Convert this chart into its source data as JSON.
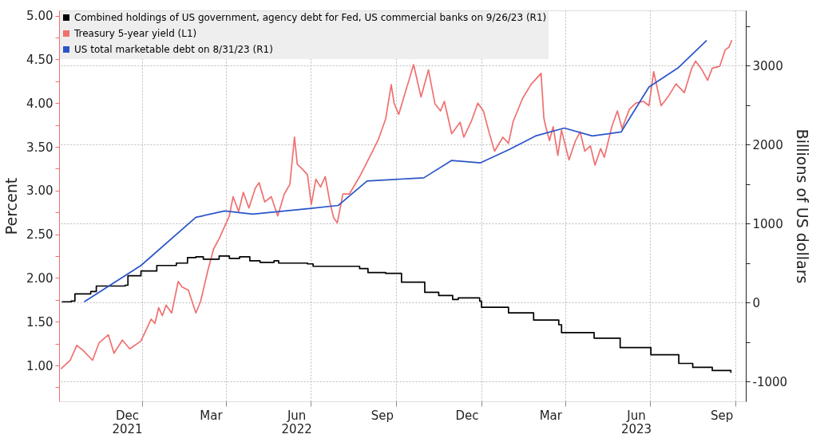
{
  "chart_data": {
    "type": "line",
    "xlabel": null,
    "ylabel": "Percent",
    "y2label": "Billions of US dollars",
    "xlim": [
      "2021-10-04",
      "2023-10-12"
    ],
    "xticks": [
      {
        "value": "2021-12-16",
        "label": "Dec\n2021"
      },
      {
        "value": "2022-01-01",
        "label": null
      },
      {
        "value": "2022-03-16",
        "label": "Mar"
      },
      {
        "value": "2022-04-01",
        "label": null
      },
      {
        "value": "2022-06-16",
        "label": "Jun\n2022"
      },
      {
        "value": "2022-07-01",
        "label": null
      },
      {
        "value": "2022-09-16",
        "label": "Sep"
      },
      {
        "value": "2022-10-01",
        "label": null
      },
      {
        "value": "2022-12-16",
        "label": "Dec"
      },
      {
        "value": "2023-01-01",
        "label": null
      },
      {
        "value": "2023-03-16",
        "label": "Mar"
      },
      {
        "value": "2023-04-01",
        "label": null
      },
      {
        "value": "2023-06-16",
        "label": "Jun\n2023"
      },
      {
        "value": "2023-07-01",
        "label": null
      },
      {
        "value": "2023-09-16",
        "label": "Sep"
      },
      {
        "value": "2023-10-01",
        "label": null
      }
    ],
    "ylim": [
      0.59,
      5.06
    ],
    "yticks": [
      {
        "value": 0.75,
        "label": null
      },
      {
        "value": 1,
        "label": "1.00"
      },
      {
        "value": 1.25,
        "label": null
      },
      {
        "value": 1.5,
        "label": "1.50"
      },
      {
        "value": 1.75,
        "label": null
      },
      {
        "value": 2,
        "label": "2.00"
      },
      {
        "value": 2.25,
        "label": null
      },
      {
        "value": 2.5,
        "label": "2.50"
      },
      {
        "value": 2.75,
        "label": null
      },
      {
        "value": 3,
        "label": "3.00"
      },
      {
        "value": 3.25,
        "label": null
      },
      {
        "value": 3.5,
        "label": "3.50"
      },
      {
        "value": 3.75,
        "label": null
      },
      {
        "value": 4,
        "label": "4.00"
      },
      {
        "value": 4.25,
        "label": null
      },
      {
        "value": 4.5,
        "label": "4.50"
      },
      {
        "value": 4.75,
        "label": null
      },
      {
        "value": 5,
        "label": "5.00"
      }
    ],
    "y2lim": [
      -1250,
      3700
    ],
    "y2ticks": [
      {
        "value": -500,
        "label": null
      },
      -1000,
      0,
      {
        "value": 500,
        "label": null
      },
      1000,
      {
        "value": 1500,
        "label": null
      },
      2000,
      {
        "value": 2500,
        "label": null
      },
      3000,
      {
        "value": 3500,
        "label": null
      }
    ],
    "grid": true,
    "legend": "top left",
    "marker": "none",
    "line_style": "solid",
    "series": [
      {
        "name": "Combined holdings of US government, agency debt for Fed, US commercial banks on 9/26/23 (R1)",
        "color": "#000000",
        "type": "step",
        "axis": "y2",
        "x": [
          "2021-10-07",
          "2021-10-17",
          "2021-10-21",
          "2021-11-03",
          "2021-11-07",
          "2021-11-13",
          "2021-12-14",
          "2021-12-17",
          "2021-12-25",
          "2021-12-31",
          "2022-01-13",
          "2022-01-17",
          "2022-02-07",
          "2022-02-19",
          "2022-02-28",
          "2022-03-08",
          "2022-03-25",
          "2022-04-05",
          "2022-04-16",
          "2022-04-27",
          "2022-05-08",
          "2022-05-23",
          "2022-05-28",
          "2022-06-28",
          "2022-07-04",
          "2022-07-31",
          "2022-08-23",
          "2022-09-01",
          "2022-09-20",
          "2022-10-07",
          "2022-11-01",
          "2022-11-16",
          "2022-12-01",
          "2022-12-07",
          "2022-12-30",
          "2023-01-01",
          "2023-01-30",
          "2023-02-26",
          "2023-03-25",
          "2023-03-28",
          "2023-05-02",
          "2023-05-30",
          "2023-07-02",
          "2023-08-01",
          "2023-08-16",
          "2023-09-06",
          "2023-09-26"
        ],
        "values": [
          10,
          20,
          110,
          110,
          140,
          210,
          220,
          340,
          340,
          400,
          400,
          470,
          500,
          570,
          580,
          550,
          590,
          560,
          580,
          530,
          510,
          530,
          500,
          490,
          460,
          460,
          430,
          380,
          370,
          260,
          130,
          90,
          40,
          60,
          20,
          -60,
          -130,
          -220,
          -280,
          -380,
          -450,
          -570,
          -660,
          -770,
          -820,
          -860,
          -890
        ]
      },
      {
        "name": "Treasury 5-year yield (L1)",
        "color": "#f07070",
        "axis": "y",
        "x": [
          "2021-10-06",
          "2021-10-16",
          "2021-10-23",
          "2021-10-30",
          "2021-11-09",
          "2021-11-16",
          "2021-11-26",
          "2021-12-02",
          "2021-12-11",
          "2021-12-19",
          "2021-12-31",
          "2022-01-11",
          "2022-01-15",
          "2022-01-19",
          "2022-01-23",
          "2022-01-27",
          "2022-02-02",
          "2022-02-09",
          "2022-02-13",
          "2022-02-20",
          "2022-02-28",
          "2022-03-05",
          "2022-03-13",
          "2022-03-19",
          "2022-03-25",
          "2022-04-05",
          "2022-04-09",
          "2022-04-15",
          "2022-04-20",
          "2022-04-26",
          "2022-05-03",
          "2022-05-07",
          "2022-05-13",
          "2022-05-20",
          "2022-05-27",
          "2022-06-03",
          "2022-06-09",
          "2022-06-14",
          "2022-06-17",
          "2022-06-22",
          "2022-06-28",
          "2022-07-02",
          "2022-07-07",
          "2022-07-12",
          "2022-07-17",
          "2022-07-22",
          "2022-07-26",
          "2022-07-30",
          "2022-08-05",
          "2022-08-12",
          "2022-08-23",
          "2022-09-05",
          "2022-09-12",
          "2022-09-20",
          "2022-09-26",
          "2022-09-29",
          "2022-10-04",
          "2022-10-11",
          "2022-10-20",
          "2022-10-28",
          "2022-11-05",
          "2022-11-12",
          "2022-11-18",
          "2022-11-22",
          "2022-11-30",
          "2022-12-09",
          "2022-12-13",
          "2022-12-21",
          "2022-12-28",
          "2023-01-03",
          "2023-01-09",
          "2023-01-15",
          "2023-01-24",
          "2023-01-30",
          "2023-02-04",
          "2023-02-14",
          "2023-02-23",
          "2023-03-06",
          "2023-03-09",
          "2023-03-11",
          "2023-03-15",
          "2023-03-19",
          "2023-03-24",
          "2023-03-28",
          "2023-04-05",
          "2023-04-12",
          "2023-04-17",
          "2023-04-22",
          "2023-04-28",
          "2023-05-03",
          "2023-05-09",
          "2023-05-13",
          "2023-05-21",
          "2023-05-27",
          "2023-06-01",
          "2023-06-09",
          "2023-06-16",
          "2023-06-24",
          "2023-06-30",
          "2023-07-05",
          "2023-07-13",
          "2023-07-21",
          "2023-07-29",
          "2023-08-07",
          "2023-08-15",
          "2023-08-19",
          "2023-08-26",
          "2023-09-01",
          "2023-09-06",
          "2023-09-14",
          "2023-09-20",
          "2023-09-24",
          "2023-09-27"
        ],
        "values": [
          0.96,
          1.06,
          1.23,
          1.17,
          1.06,
          1.26,
          1.35,
          1.14,
          1.29,
          1.19,
          1.28,
          1.53,
          1.48,
          1.66,
          1.57,
          1.69,
          1.6,
          1.96,
          1.9,
          1.86,
          1.6,
          1.73,
          2.09,
          2.33,
          2.45,
          2.71,
          2.93,
          2.76,
          2.98,
          2.8,
          3.03,
          3.09,
          2.87,
          2.93,
          2.71,
          2.96,
          3.07,
          3.61,
          3.3,
          3.25,
          3.18,
          2.84,
          3.13,
          3.04,
          3.16,
          2.87,
          2.69,
          2.63,
          2.96,
          2.96,
          3.16,
          3.43,
          3.58,
          3.82,
          4.21,
          4.0,
          3.87,
          4.12,
          4.44,
          4.07,
          4.38,
          3.99,
          3.91,
          4.02,
          3.65,
          3.78,
          3.61,
          3.79,
          4.0,
          3.91,
          3.67,
          3.45,
          3.61,
          3.54,
          3.79,
          4.05,
          4.21,
          4.34,
          3.83,
          3.73,
          3.57,
          3.73,
          3.4,
          3.69,
          3.35,
          3.57,
          3.67,
          3.45,
          3.51,
          3.29,
          3.48,
          3.38,
          3.73,
          3.91,
          3.71,
          3.93,
          4.0,
          4.02,
          3.97,
          4.36,
          3.97,
          4.08,
          4.22,
          4.12,
          4.4,
          4.48,
          4.38,
          4.26,
          4.4,
          4.42,
          4.61,
          4.64,
          4.72
        ]
      },
      {
        "name": "US total marketable debt on 8/31/23 (R1)",
        "color": "#2a55c8",
        "axis": "y2",
        "x": [
          "2021-10-31",
          "2021-12-31",
          "2022-02-28",
          "2022-03-31",
          "2022-04-30",
          "2022-06-30",
          "2022-07-31",
          "2022-08-31",
          "2022-09-30",
          "2022-10-31",
          "2022-11-30",
          "2022-12-31",
          "2023-01-31",
          "2023-02-28",
          "2023-03-31",
          "2023-04-30",
          "2023-05-31",
          "2023-06-30",
          "2023-07-31",
          "2023-08-31"
        ],
        "values": [
          10,
          470,
          1080,
          1160,
          1120,
          1190,
          1230,
          1540,
          1560,
          1580,
          1800,
          1770,
          1940,
          2110,
          2210,
          2110,
          2160,
          2730,
          2970,
          3320
        ]
      }
    ]
  }
}
